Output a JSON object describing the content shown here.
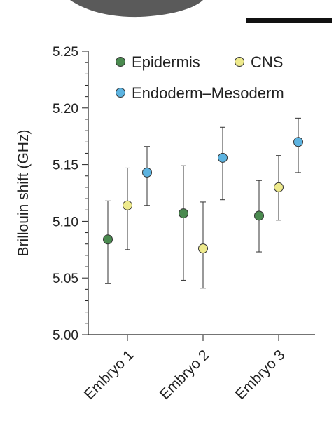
{
  "chart_data": {
    "type": "scatter",
    "title": "",
    "xlabel": "",
    "ylabel": "Brillouin shift (GHz)",
    "ylim": [
      5.0,
      5.25
    ],
    "yticks": [
      "5.00",
      "5.05",
      "5.10",
      "5.15",
      "5.20",
      "5.25"
    ],
    "categories": [
      "Embryo 1",
      "Embryo 2",
      "Embryo 3"
    ],
    "legend_position": "top-right",
    "grid": false,
    "error_bars": true,
    "series": [
      {
        "name": "Epidermis",
        "color": "#4a8a4f",
        "values": [
          5.084,
          5.107,
          5.105
        ],
        "err_low": [
          5.045,
          5.048,
          5.073
        ],
        "err_high": [
          5.118,
          5.149,
          5.136
        ]
      },
      {
        "name": "CNS",
        "color": "#eeea8c",
        "values": [
          5.114,
          5.076,
          5.13
        ],
        "err_low": [
          5.075,
          5.041,
          5.101
        ],
        "err_high": [
          5.147,
          5.117,
          5.158
        ]
      },
      {
        "name": "Endoderm–Mesoderm",
        "color": "#5cb3e0",
        "values": [
          5.143,
          5.156,
          5.17
        ],
        "err_low": [
          5.114,
          5.119,
          5.143
        ],
        "err_high": [
          5.166,
          5.183,
          5.191
        ]
      }
    ]
  },
  "decor": {
    "top_image_color": "#5a5a5a",
    "scale_bar_color": "#111111"
  }
}
